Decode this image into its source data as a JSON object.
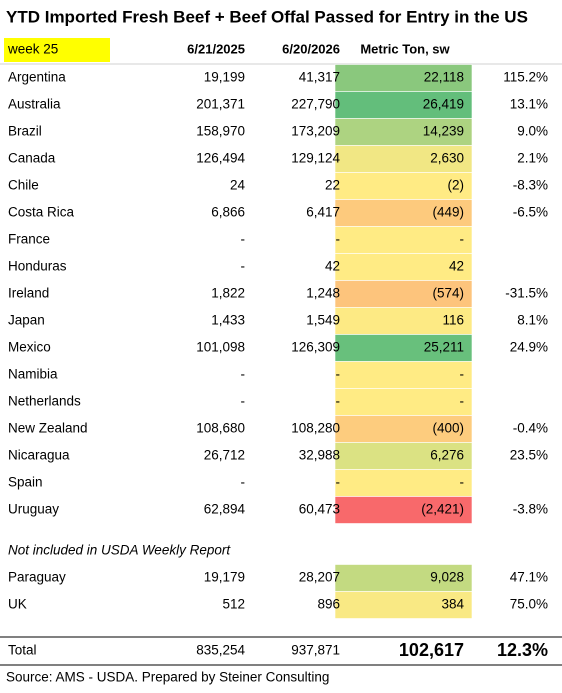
{
  "title": "YTD Imported Fresh Beef + Beef Offal Passed for Entry in the US",
  "header": {
    "week": "week 25",
    "col1": "6/21/2025",
    "col2": "6/20/2026",
    "col3": "Metric Ton, sw"
  },
  "rows": [
    {
      "country": "Argentina",
      "prev": "19,199",
      "curr": "41,317",
      "change": "22,118",
      "pct": "115.2%",
      "color": "#8ac87d"
    },
    {
      "country": "Australia",
      "prev": "201,371",
      "curr": "227,790",
      "change": "26,419",
      "pct": "13.1%",
      "color": "#63be7b"
    },
    {
      "country": "Brazil",
      "prev": "158,970",
      "curr": "173,209",
      "change": "14,239",
      "pct": "9.0%",
      "color": "#add381"
    },
    {
      "country": "Canada",
      "prev": "126,494",
      "curr": "129,124",
      "change": "2,630",
      "pct": "2.1%",
      "color": "#f1e784"
    },
    {
      "country": "Chile",
      "prev": "24",
      "curr": "22",
      "change": "(2)",
      "pct": "-8.3%",
      "color": "#ffeb84"
    },
    {
      "country": "Costa Rica",
      "prev": "6,866",
      "curr": "6,417",
      "change": "(449)",
      "pct": "-6.5%",
      "color": "#fdca7d"
    },
    {
      "country": "France",
      "prev": "-",
      "curr": "-",
      "change": "-",
      "color": "#ffeb84"
    },
    {
      "country": "Honduras",
      "prev": "-",
      "curr": "42",
      "change": "42",
      "color": "#ffeb84"
    },
    {
      "country": "Ireland",
      "prev": "1,822",
      "curr": "1,248",
      "change": "(574)",
      "pct": "-31.5%",
      "color": "#fdc47c"
    },
    {
      "country": "Japan",
      "prev": "1,433",
      "curr": "1,549",
      "change": "116",
      "pct": "8.1%",
      "color": "#fdea84"
    },
    {
      "country": "Mexico",
      "prev": "101,098",
      "curr": "126,309",
      "change": "25,211",
      "pct": "24.9%",
      "color": "#68c07c"
    },
    {
      "country": "Namibia",
      "prev": "-",
      "curr": "-",
      "change": "-",
      "color": "#ffeb84"
    },
    {
      "country": "Netherlands",
      "prev": "-",
      "curr": "-",
      "change": "-",
      "color": "#ffeb84"
    },
    {
      "country": "New Zealand",
      "prev": "108,680",
      "curr": "108,280",
      "change": "(400)",
      "pct": "-0.4%",
      "color": "#fdcc7e"
    },
    {
      "country": "Nicaragua",
      "prev": "26,712",
      "curr": "32,988",
      "change": "6,276",
      "pct": "23.5%",
      "color": "#dbe283"
    },
    {
      "country": "Spain",
      "prev": "-",
      "curr": "-",
      "change": "-",
      "color": "#ffeb84"
    },
    {
      "country": "Uruguay",
      "prev": "62,894",
      "curr": "60,473",
      "change": "(2,421)",
      "pct": "-3.8%",
      "color": "#f8696b"
    }
  ],
  "note": "Not included in USDA Weekly Report",
  "extra_rows": [
    {
      "country": "Paraguay",
      "prev": "19,179",
      "curr": "28,207",
      "change": "9,028",
      "pct": "47.1%",
      "color": "#c3da81"
    },
    {
      "country": "UK",
      "prev": "512",
      "curr": "896",
      "change": "384",
      "pct": "75.0%",
      "color": "#f9e984"
    }
  ],
  "total": {
    "label": "Total",
    "prev": "835,254",
    "curr": "937,871",
    "change": "102,617",
    "pct": "12.3%"
  },
  "source": "Source: AMS - USDA.  Prepared by Steiner Consulting"
}
